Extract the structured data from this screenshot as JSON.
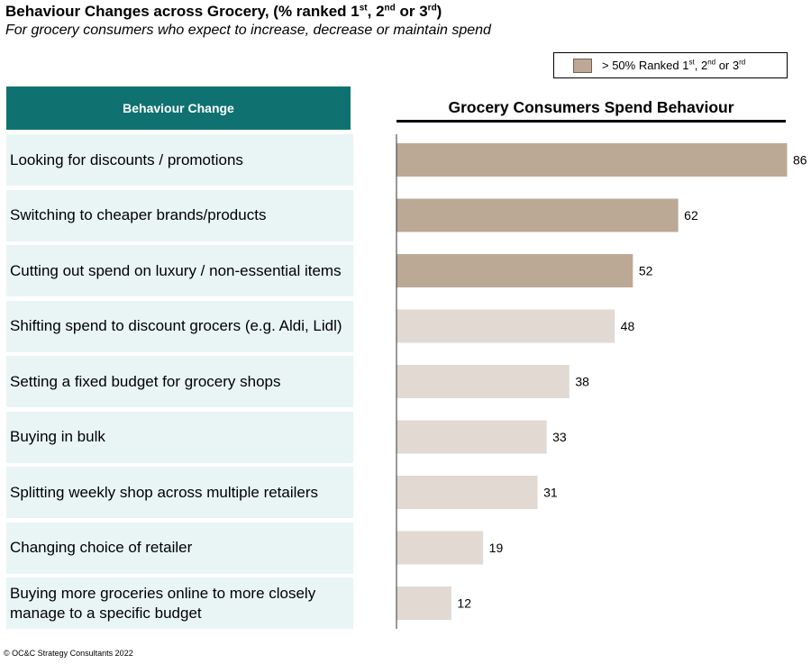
{
  "header": {
    "title_main": "Behaviour Changes across Grocery, (% ranked 1",
    "title_sup1": "st",
    "title_sep1": ", 2",
    "title_sup2": "nd",
    "title_sep2": " or 3",
    "title_sup3": "rd",
    "title_end": ")",
    "subtitle": "For grocery consumers who expect to increase, decrease or maintain spend"
  },
  "legend": {
    "label_main": "> 50% Ranked 1",
    "sup1": "st",
    "sep1": ", 2",
    "sup2": "nd",
    "sep2": " or 3",
    "sup3": "rd",
    "highlight_color": "#bba996",
    "other_color": "#e2d9d3"
  },
  "table": {
    "column_header": "Behaviour Change"
  },
  "chart_data": {
    "type": "bar",
    "orientation": "horizontal",
    "title": "Grocery Consumers Spend Behaviour",
    "categories": [
      "Looking for discounts / promotions",
      "Switching to cheaper brands/products",
      "Cutting out spend on luxury / non-essential items",
      "Shifting spend to discount grocers (e.g. Aldi, Lidl)",
      "Setting a fixed budget for grocery shops",
      "Buying in bulk",
      "Splitting weekly shop across multiple retailers",
      "Changing choice of retailer",
      "Buying more groceries online to more closely manage to a specific budget"
    ],
    "values": [
      86,
      62,
      52,
      48,
      38,
      33,
      31,
      19,
      12
    ],
    "highlighted": [
      true,
      true,
      true,
      false,
      false,
      false,
      false,
      false,
      false
    ],
    "xlim": [
      0,
      86
    ],
    "data_labels": true,
    "grid": false
  },
  "footer": {
    "copyright": "© OC&C Strategy Consultants 2022"
  }
}
